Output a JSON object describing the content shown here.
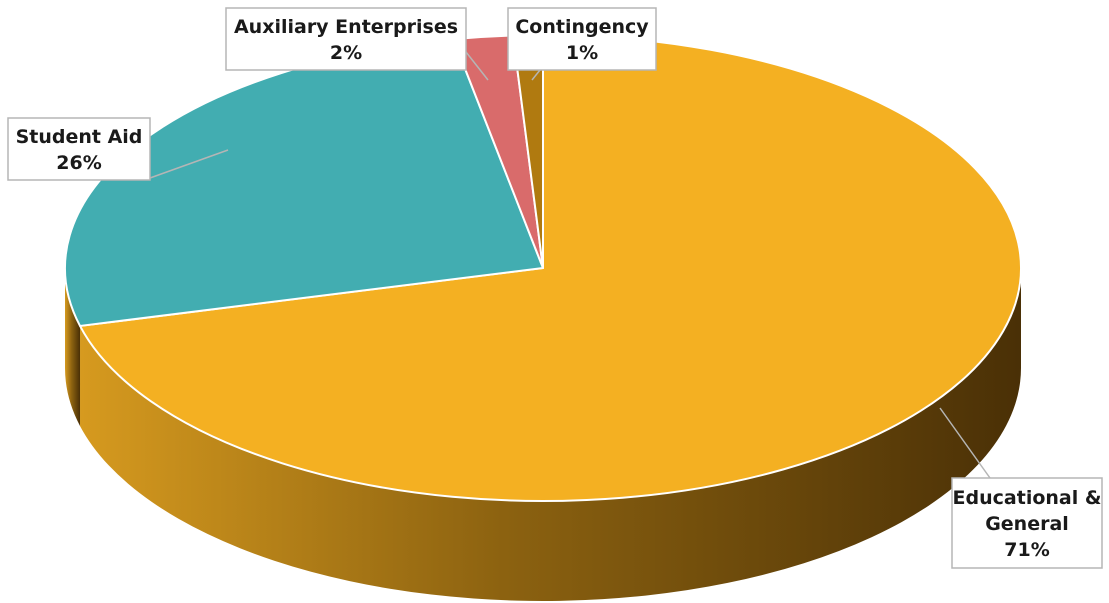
{
  "chart_data": {
    "type": "pie",
    "style": "3d",
    "title": "",
    "legend": "none",
    "slices": [
      {
        "name": "Educational & General",
        "value": 71,
        "label_lines": [
          "Educational &",
          "General",
          "71%"
        ],
        "color": "#F4B022"
      },
      {
        "name": "Student Aid",
        "value": 26,
        "label_lines": [
          "Student Aid",
          "26%"
        ],
        "color": "#42ADB1"
      },
      {
        "name": "Auxiliary Enterprises",
        "value": 2,
        "label_lines": [
          "Auxiliary Enterprises",
          "2%"
        ],
        "color": "#D96B6B"
      },
      {
        "name": "Contingency",
        "value": 1,
        "label_lines": [
          "Contingency",
          "1%"
        ],
        "color": "#B07A10"
      }
    ],
    "side_colors": {
      "light": "#D69A1F",
      "mid": "#8C6210",
      "dark": "#4A3006"
    }
  }
}
